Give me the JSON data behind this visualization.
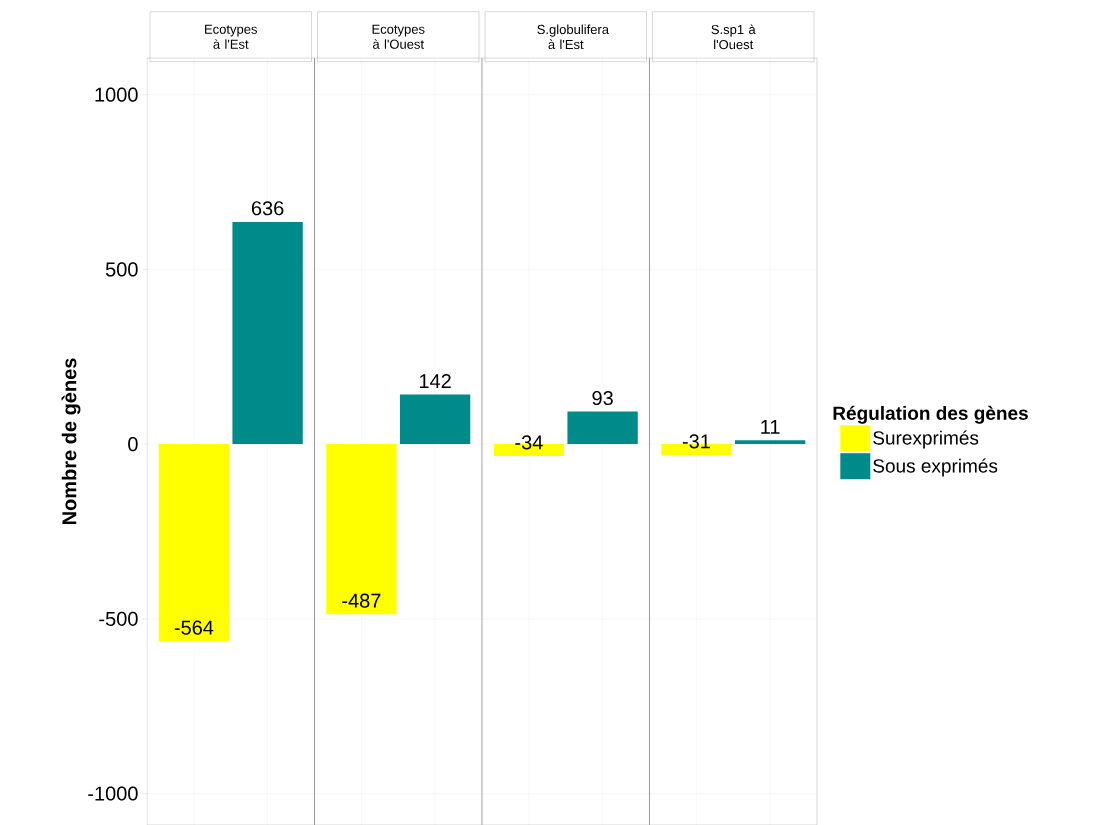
{
  "chart_data": {
    "type": "bar",
    "ylabel": "Nombre de gènes",
    "legend_title": "Régulation des gènes",
    "legend": "right",
    "categories": [
      "Ecotypes à l'Est",
      "Ecotypes à l'Ouest",
      "S.globulifera à l'Est",
      "S.sp1 à l'Ouest"
    ],
    "series": [
      {
        "name": "Surexprimés",
        "color": "#ffff00",
        "values": [
          -564,
          -487,
          -34,
          -31
        ]
      },
      {
        "name": "Sous exprimés",
        "color": "#008b8b",
        "values": [
          636,
          142,
          93,
          11
        ]
      }
    ],
    "ylim": [
      -1090,
      1105
    ],
    "yticks": [
      -1000,
      -500,
      0,
      500,
      1000
    ],
    "grid": true,
    "data_labels": true
  }
}
